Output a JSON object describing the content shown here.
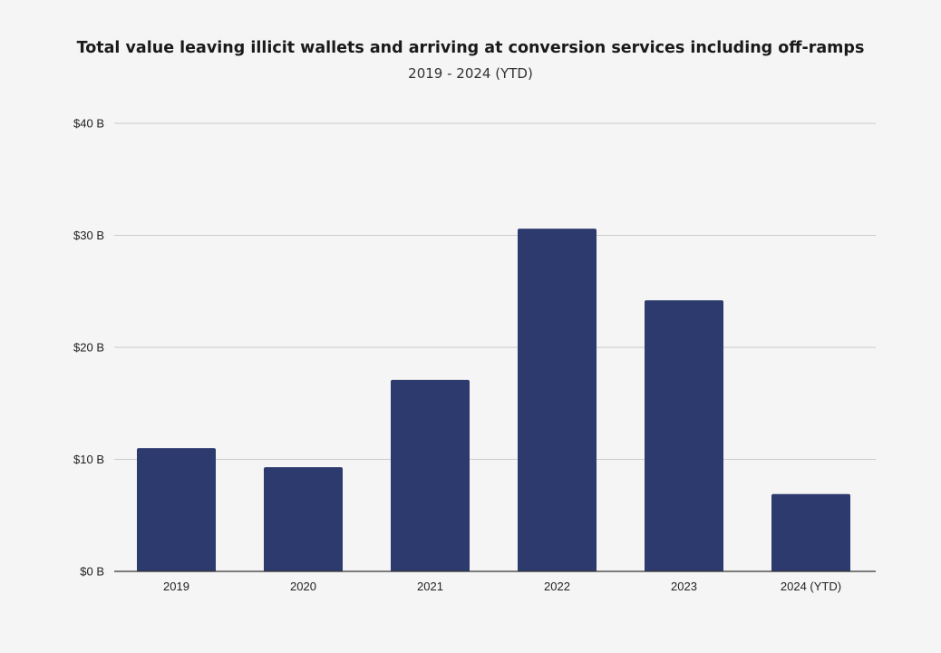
{
  "chart_data": {
    "type": "bar",
    "title": "Total value leaving illicit wallets and arriving at conversion services including off-ramps",
    "subtitle": "2019 - 2024 (YTD)",
    "xlabel": "",
    "ylabel": "",
    "categories": [
      "2019",
      "2020",
      "2021",
      "2022",
      "2023",
      "2024 (YTD)"
    ],
    "values": [
      11.0,
      9.3,
      17.1,
      30.6,
      24.2,
      6.9
    ],
    "ylim": [
      0,
      40
    ],
    "yticks": [
      0,
      10,
      20,
      30,
      40
    ],
    "ytick_labels": [
      "$0 B",
      "$10 B",
      "$20 B",
      "$30 B",
      "$40 B"
    ],
    "grid": true,
    "legend": "none",
    "bar_color": "#2c3a6e",
    "grid_color": "#cccccc",
    "axis_color": "#333333"
  }
}
